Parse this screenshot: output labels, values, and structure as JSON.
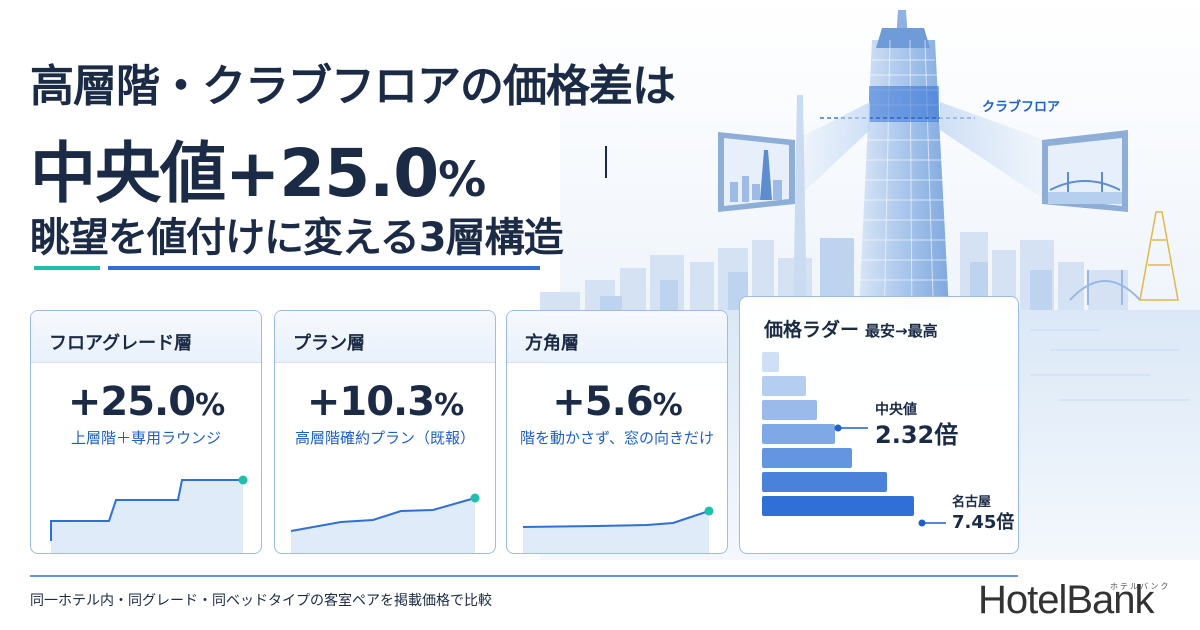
{
  "headline": {
    "line1": "高層階・クラブフロアの価格差は",
    "line2_main": "中央値+25.0",
    "line2_pct": "%",
    "line3": "眺望を値付けに変える3層構造"
  },
  "tower_label": "クラブフロア",
  "cards": [
    {
      "title": "フロアグレード層",
      "value": "+25.0",
      "unit": "%",
      "desc": "上層階＋専用ラウンジ"
    },
    {
      "title": "プラン層",
      "value": "+10.3",
      "unit": "%",
      "desc": "高層階確約プラン（既報）"
    },
    {
      "title": "方角層",
      "value": "+5.6",
      "unit": "%",
      "desc": "階を動かさず、窓の向きだけ"
    }
  ],
  "ladder": {
    "title": "価格ラダー",
    "subtitle": "最安→最高",
    "bars": [
      0.11,
      0.29,
      0.36,
      0.48,
      0.59,
      0.82,
      1.0
    ],
    "median_label": "中央値",
    "median_value": "2.32倍",
    "max_label": "名古屋",
    "max_value": "7.45倍"
  },
  "footnote": "同一ホテル内・同グレード・同ベッドタイプの客室ペアを掲載価格で比較",
  "logo": {
    "text": "HotelBank",
    "kana": "ホテルバンク"
  },
  "colors": {
    "navy": "#1b2a45",
    "accent_blue": "#1f5fc8",
    "teal": "#1fbfa9",
    "bar_light": "#cfe0f6",
    "bar_dark": "#2f6fd6"
  }
}
